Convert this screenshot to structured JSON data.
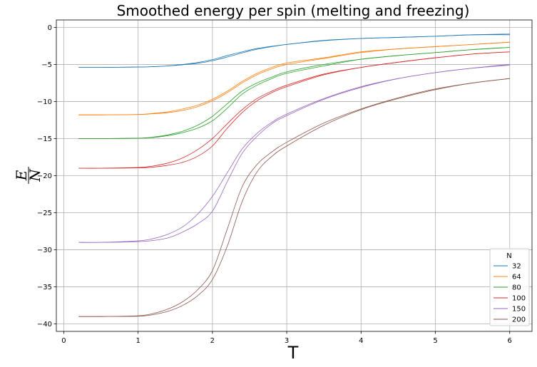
{
  "chart_data": {
    "type": "line",
    "title": "Smoothed energy per spin (melting and freezing)",
    "xlabel": "T",
    "ylabel_numerator": "E",
    "ylabel_denominator": "N",
    "xlim": [
      -0.1,
      6.3
    ],
    "ylim": [
      -41,
      1
    ],
    "xticks": [
      0,
      1,
      2,
      3,
      4,
      5,
      6
    ],
    "yticks": [
      0,
      -5,
      -10,
      -15,
      -20,
      -25,
      -30,
      -35,
      -40
    ],
    "grid": true,
    "legend": {
      "title": "N",
      "placement": "lower-right"
    },
    "series": [
      {
        "name": "32",
        "color": "#1f77b4",
        "x": [
          0.2,
          0.5,
          1.0,
          1.2,
          1.4,
          1.6,
          1.8,
          2.0,
          2.2,
          2.4,
          2.6,
          2.8,
          3.0,
          3.5,
          4.0,
          4.5,
          5.0,
          5.5,
          6.0
        ],
        "melt": [
          -5.4,
          -5.4,
          -5.35,
          -5.3,
          -5.2,
          -5.0,
          -4.75,
          -4.35,
          -3.8,
          -3.3,
          -2.85,
          -2.55,
          -2.3,
          -1.8,
          -1.5,
          -1.35,
          -1.2,
          -1.0,
          -1.0
        ],
        "freeze": [
          -5.4,
          -5.4,
          -5.35,
          -5.3,
          -5.2,
          -5.05,
          -4.85,
          -4.5,
          -4.0,
          -3.45,
          -2.95,
          -2.6,
          -2.3,
          -1.75,
          -1.5,
          -1.35,
          -1.2,
          -1.0,
          -0.9
        ]
      },
      {
        "name": "64",
        "color": "#ff7f0e",
        "x": [
          0.2,
          0.5,
          1.0,
          1.2,
          1.4,
          1.6,
          1.8,
          2.0,
          2.2,
          2.4,
          2.6,
          2.8,
          3.0,
          3.5,
          4.0,
          4.5,
          5.0,
          5.5,
          6.0
        ],
        "melt": [
          -11.8,
          -11.8,
          -11.75,
          -11.6,
          -11.4,
          -11.0,
          -10.5,
          -9.7,
          -8.6,
          -7.3,
          -6.2,
          -5.4,
          -4.8,
          -4.1,
          -3.3,
          -2.9,
          -2.6,
          -2.3,
          -2.0
        ],
        "freeze": [
          -11.8,
          -11.8,
          -11.75,
          -11.65,
          -11.5,
          -11.2,
          -10.7,
          -9.9,
          -8.8,
          -7.5,
          -6.4,
          -5.6,
          -5.0,
          -4.2,
          -3.4,
          -2.9,
          -2.6,
          -2.3,
          -2.0
        ]
      },
      {
        "name": "80",
        "color": "#2ca02c",
        "x": [
          0.2,
          0.5,
          1.0,
          1.2,
          1.4,
          1.6,
          1.8,
          2.0,
          2.2,
          2.4,
          2.6,
          2.8,
          3.0,
          3.5,
          4.0,
          4.5,
          5.0,
          5.5,
          6.0
        ],
        "melt": [
          -15.0,
          -15.0,
          -14.95,
          -14.8,
          -14.5,
          -14.0,
          -13.2,
          -12.0,
          -10.3,
          -8.6,
          -7.5,
          -6.7,
          -6.0,
          -5.0,
          -4.3,
          -3.8,
          -3.4,
          -3.0,
          -2.7
        ],
        "freeze": [
          -15.0,
          -15.0,
          -14.95,
          -14.85,
          -14.6,
          -14.2,
          -13.6,
          -12.6,
          -10.9,
          -9.0,
          -7.8,
          -6.9,
          -6.2,
          -5.2,
          -4.3,
          -3.8,
          -3.4,
          -3.0,
          -2.7
        ]
      },
      {
        "name": "100",
        "color": "#d62728",
        "x": [
          0.2,
          0.5,
          1.0,
          1.2,
          1.4,
          1.6,
          1.8,
          2.0,
          2.2,
          2.4,
          2.6,
          2.8,
          3.0,
          3.5,
          4.0,
          4.5,
          5.0,
          5.5,
          6.0
        ],
        "melt": [
          -19.0,
          -19.0,
          -18.9,
          -18.7,
          -18.3,
          -17.6,
          -16.5,
          -15.0,
          -13.0,
          -11.1,
          -9.6,
          -8.6,
          -7.8,
          -6.3,
          -5.4,
          -4.7,
          -4.1,
          -3.6,
          -3.3
        ],
        "freeze": [
          -19.0,
          -19.0,
          -18.95,
          -18.85,
          -18.6,
          -18.2,
          -17.4,
          -16.0,
          -13.6,
          -11.5,
          -9.9,
          -8.8,
          -8.0,
          -6.4,
          -5.4,
          -4.7,
          -4.1,
          -3.6,
          -3.3
        ]
      },
      {
        "name": "150",
        "color": "#9467bd",
        "x": [
          0.2,
          0.5,
          1.0,
          1.2,
          1.4,
          1.6,
          1.8,
          2.0,
          2.2,
          2.4,
          2.6,
          2.8,
          3.0,
          3.5,
          4.0,
          4.5,
          5.0,
          5.5,
          6.0
        ],
        "melt": [
          -29.0,
          -29.0,
          -28.8,
          -28.5,
          -27.9,
          -26.9,
          -25.2,
          -22.8,
          -19.6,
          -16.4,
          -14.3,
          -12.8,
          -11.7,
          -9.6,
          -8.0,
          -6.9,
          -6.1,
          -5.5,
          -5.1
        ],
        "freeze": [
          -29.0,
          -29.0,
          -28.9,
          -28.75,
          -28.4,
          -27.6,
          -26.5,
          -24.8,
          -20.8,
          -17.0,
          -14.7,
          -13.0,
          -11.9,
          -9.7,
          -8.1,
          -6.9,
          -6.1,
          -5.5,
          -5.0
        ]
      },
      {
        "name": "200",
        "color": "#8c564b",
        "x": [
          0.2,
          0.5,
          1.0,
          1.2,
          1.4,
          1.6,
          1.8,
          2.0,
          2.2,
          2.4,
          2.6,
          2.8,
          3.0,
          3.5,
          4.0,
          4.5,
          5.0,
          5.5,
          6.0
        ],
        "melt": [
          -39.0,
          -39.0,
          -38.9,
          -38.6,
          -38.0,
          -37.0,
          -35.4,
          -32.8,
          -27.2,
          -21.5,
          -18.5,
          -16.8,
          -15.5,
          -12.9,
          -11.0,
          -9.5,
          -8.3,
          -7.5,
          -6.9
        ],
        "freeze": [
          -39.0,
          -39.0,
          -38.95,
          -38.75,
          -38.3,
          -37.5,
          -36.2,
          -34.0,
          -29.5,
          -23.5,
          -19.5,
          -17.4,
          -16.0,
          -13.2,
          -11.1,
          -9.6,
          -8.4,
          -7.5,
          -6.9
        ]
      }
    ]
  }
}
